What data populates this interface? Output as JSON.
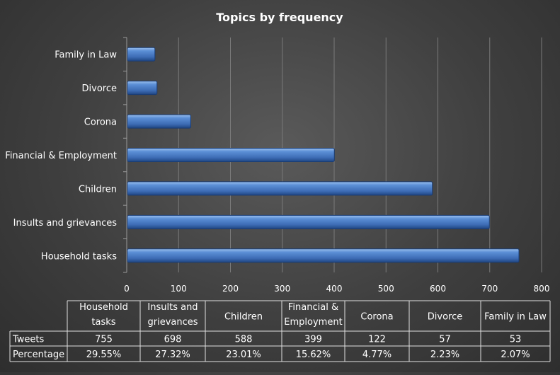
{
  "chart_data": {
    "type": "bar",
    "orientation": "horizontal",
    "title": "Topics by frequency",
    "categories": [
      "Household tasks",
      "Insults and grievances",
      "Children",
      "Financial & Employment",
      "Corona",
      "Divorce",
      "Family in Law"
    ],
    "series": [
      {
        "name": "Tweets",
        "values": [
          755,
          698,
          588,
          399,
          122,
          57,
          53
        ]
      }
    ],
    "xlim": [
      0,
      800
    ],
    "xticks": [
      0,
      100,
      200,
      300,
      400,
      500,
      600,
      700,
      800
    ],
    "grid": true,
    "bar_color": "#4a7cc6",
    "table": {
      "headers": [
        [
          "Household",
          "tasks"
        ],
        [
          "Insults and",
          "grievances"
        ],
        [
          "Children"
        ],
        [
          "Financial &",
          "Employment"
        ],
        [
          "Corona"
        ],
        [
          "Divorce"
        ],
        [
          "Family in Law"
        ]
      ],
      "rows": [
        {
          "label": "Tweets",
          "cells": [
            "755",
            "698",
            "588",
            "399",
            "122",
            "57",
            "53"
          ]
        },
        {
          "label": "Percentage",
          "cells": [
            "29.55%",
            "27.32%",
            "23.01%",
            "15.62%",
            "4.77%",
            "2.23%",
            "2.07%"
          ]
        }
      ]
    }
  }
}
